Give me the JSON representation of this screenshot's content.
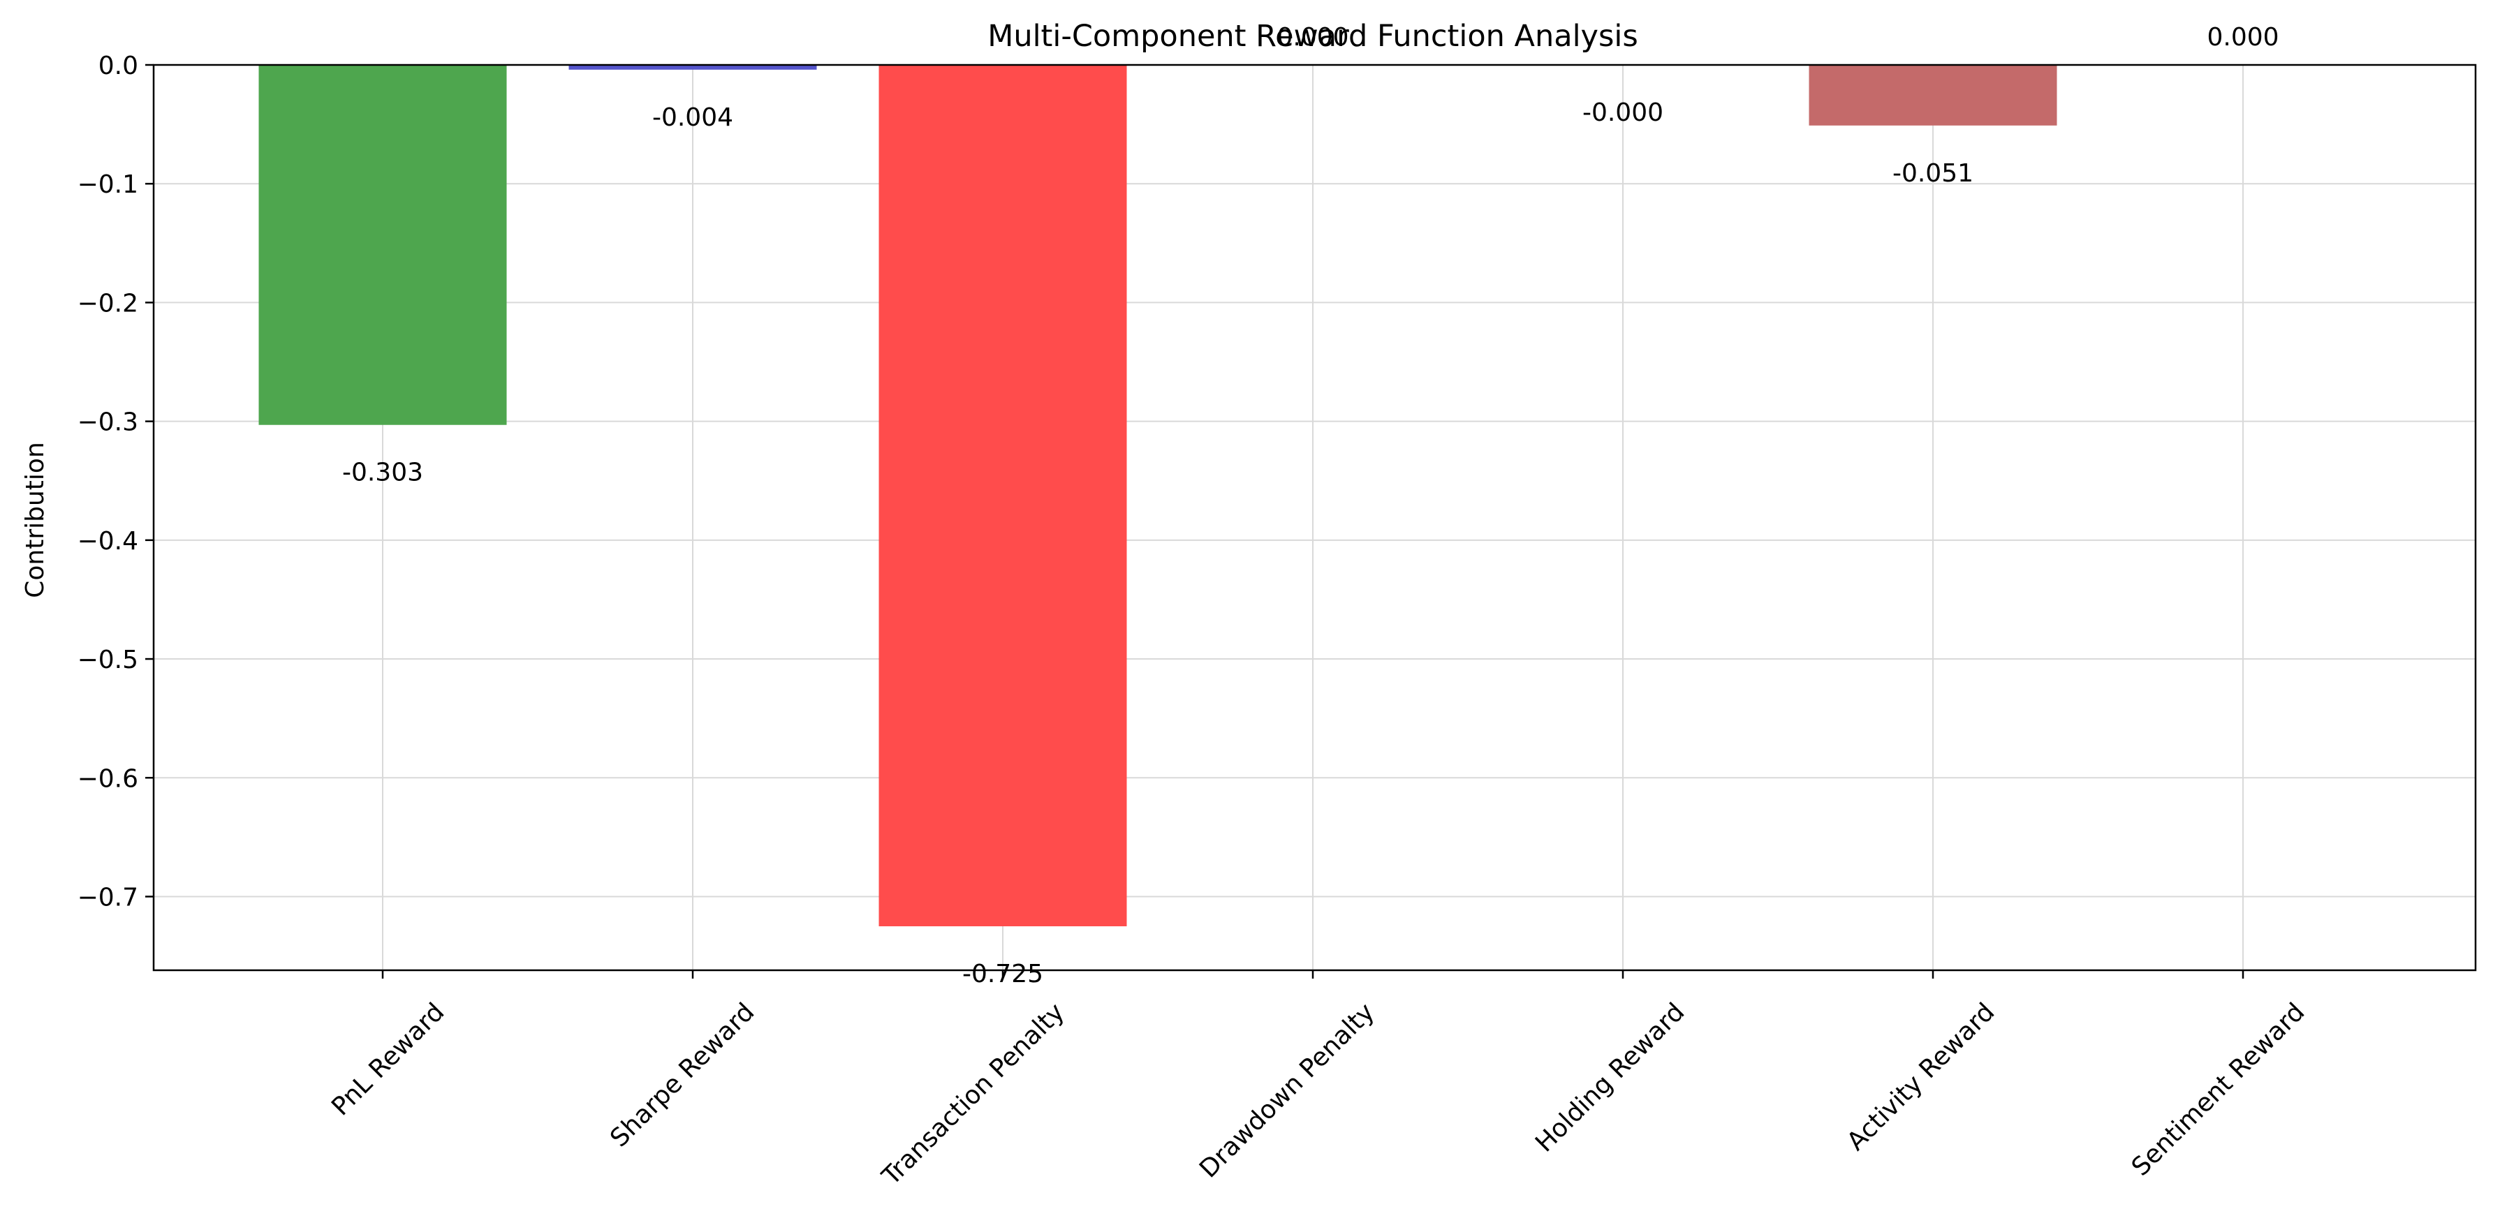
{
  "chart_data": {
    "type": "bar",
    "title": "Multi-Component Reward Function Analysis",
    "xlabel": "",
    "ylabel": "Contribution",
    "categories": [
      "PnL Reward",
      "Sharpe Reward",
      "Transaction Penalty",
      "Drawdown Penalty",
      "Holding Reward",
      "Activity Reward",
      "Sentiment Reward"
    ],
    "values": [
      -0.303,
      -0.004,
      -0.725,
      0.0,
      -0.0,
      -0.051,
      0.0
    ],
    "value_labels": [
      "-0.303",
      "-0.004",
      "-0.725",
      "0.000",
      "-0.000",
      "-0.051",
      "0.000"
    ],
    "bar_colors": [
      "#4ea64e",
      "#5555cc",
      "#ff4c4c",
      "#e67e22",
      "#9b59b6",
      "#c46a6a",
      "#8c8c8c"
    ],
    "ylim": [
      -0.762,
      0.0
    ],
    "yticks": [
      0.0,
      -0.1,
      -0.2,
      -0.3,
      -0.4,
      -0.5,
      -0.6,
      -0.7
    ],
    "ytick_labels": [
      "0.0",
      "−0.1",
      "−0.2",
      "−0.3",
      "−0.4",
      "−0.5",
      "−0.6",
      "−0.7"
    ],
    "grid": true,
    "legend": "none"
  }
}
